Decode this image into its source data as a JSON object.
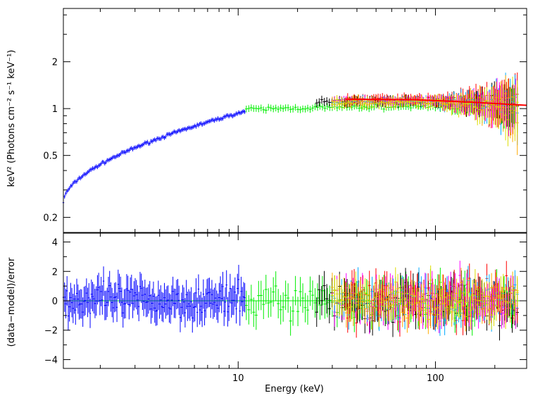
{
  "chart_data": [
    {
      "type": "scatter",
      "panel": "top",
      "title": "",
      "ylabel": "keV² (Photons cm⁻² s⁻¹ keV⁻¹)",
      "xlabel": "",
      "xscale": "log",
      "yscale": "log",
      "xlim": [
        1.3,
        290
      ],
      "ylim": [
        0.16,
        4.4
      ],
      "grid": false,
      "legend": "none",
      "y_ticks": [
        {
          "value": 0.2,
          "label": "0.2"
        },
        {
          "value": 0.5,
          "label": "0.5"
        },
        {
          "value": 1,
          "label": "1"
        },
        {
          "value": 2,
          "label": "2"
        }
      ],
      "series": [
        {
          "color": "#0000ff",
          "x_range": [
            1.3,
            10.8
          ],
          "y_start": 0.25,
          "y_end": 0.96,
          "error_rel": 0.03
        },
        {
          "color": "#00ee00",
          "x_range": [
            11,
            250
          ],
          "y_start": 0.98,
          "y_end": 1.05,
          "error_rel": 0.05
        },
        {
          "color": "#000000",
          "x_range": [
            25,
            260
          ],
          "y_level": 1.12,
          "error_rel": 0.06
        },
        {
          "color": "#ff0000",
          "x_range": [
            35,
            260
          ],
          "y_level": 1.14,
          "error_rel": 0.07
        },
        {
          "color": "#ff00ff",
          "x_range": [
            30,
            255
          ],
          "y_level": 1.12,
          "error_rel": 0.06
        },
        {
          "color": "#00aaff",
          "x_range": [
            30,
            260
          ],
          "y_level": 1.1,
          "error_rel": 0.07
        },
        {
          "color": "#ffaa00",
          "x_range": [
            30,
            260
          ],
          "y_level": 1.1,
          "error_rel": 0.07
        },
        {
          "color": "#dddd00",
          "x_range": [
            30,
            260
          ],
          "y_level": 1.1,
          "error_rel": 0.07
        }
      ],
      "model_line": {
        "color": "#ff0000",
        "x": [
          35,
          80,
          150,
          290
        ],
        "y": [
          1.15,
          1.14,
          1.1,
          1.05
        ]
      }
    },
    {
      "type": "scatter",
      "panel": "bottom",
      "title": "",
      "ylabel": "(data−model)/error",
      "xlabel": "Energy (keV)",
      "xscale": "log",
      "xlim": [
        1.3,
        290
      ],
      "ylim": [
        -4.6,
        4.6
      ],
      "grid": false,
      "legend": "none",
      "x_ticks": [
        {
          "value": 10,
          "label": "10"
        },
        {
          "value": 100,
          "label": "100"
        }
      ],
      "y_ticks": [
        {
          "value": -4,
          "label": "−4"
        },
        {
          "value": -2,
          "label": "−2"
        },
        {
          "value": 0,
          "label": "0"
        },
        {
          "value": 2,
          "label": "2"
        },
        {
          "value": 4,
          "label": "4"
        }
      ],
      "zero_line": {
        "value": 0,
        "color": "#00ee00"
      },
      "series": [
        {
          "color": "#0000ff",
          "x_range": [
            1.3,
            10.8
          ],
          "spread": 1.6
        },
        {
          "color": "#00ee00",
          "x_range": [
            11,
            250
          ],
          "spread": 1.8
        },
        {
          "color": "#000000",
          "x_range": [
            25,
            260
          ],
          "spread": 2.2
        },
        {
          "color": "#ff0000",
          "x_range": [
            35,
            260
          ],
          "spread": 2.0
        },
        {
          "color": "#ff00ff",
          "x_range": [
            30,
            255
          ],
          "spread": 2.0
        },
        {
          "color": "#00aaff",
          "x_range": [
            30,
            260
          ],
          "spread": 2.0
        },
        {
          "color": "#ffaa00",
          "x_range": [
            30,
            260
          ],
          "spread": 1.8
        },
        {
          "color": "#dddd00",
          "x_range": [
            30,
            260
          ],
          "spread": 1.8
        }
      ]
    }
  ]
}
